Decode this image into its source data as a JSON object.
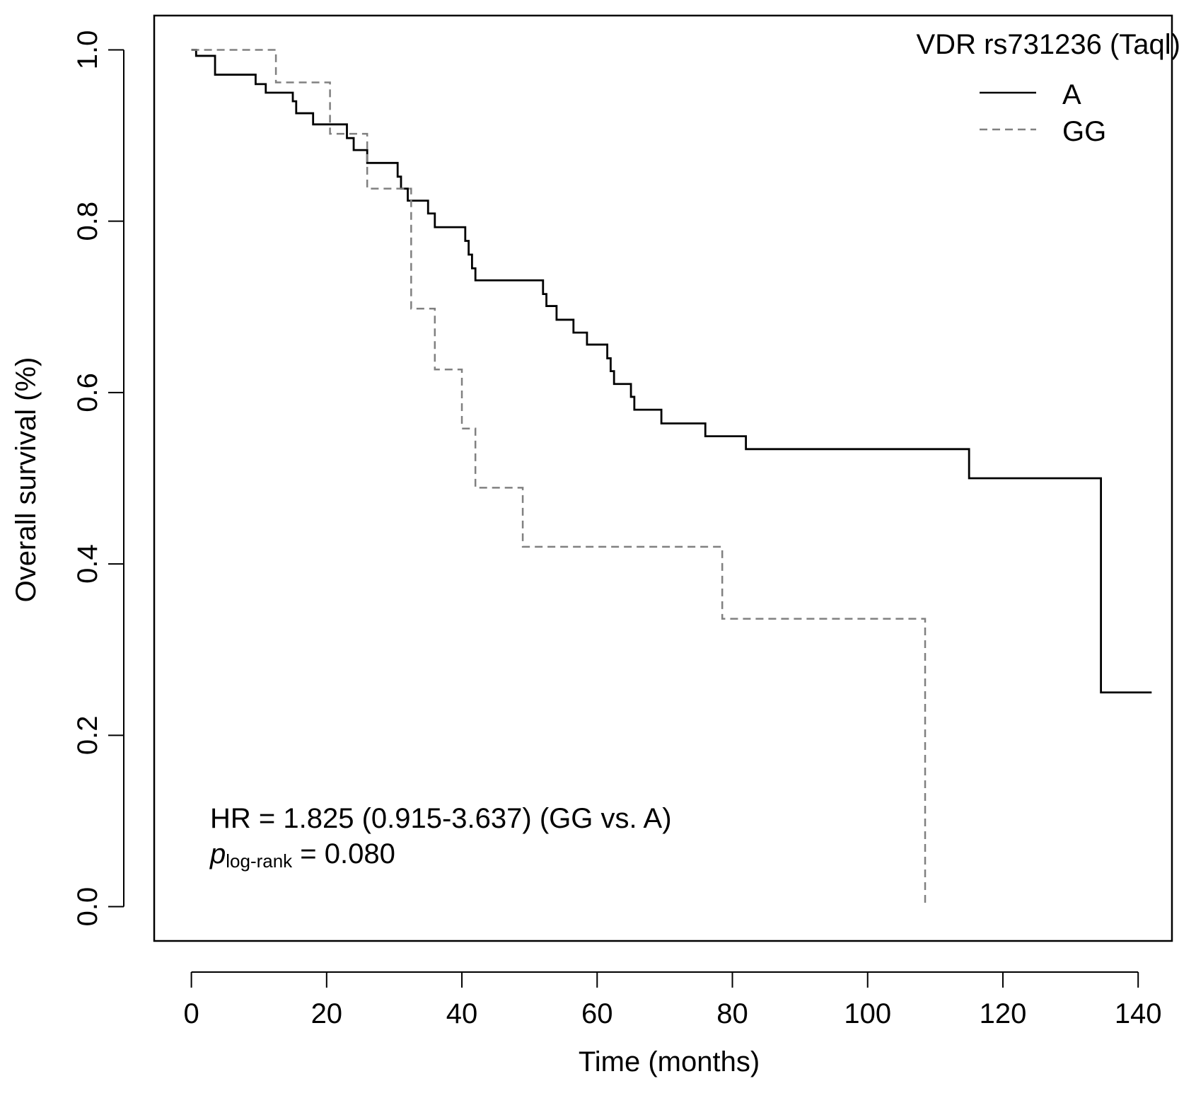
{
  "chart_data": {
    "type": "line",
    "subtype": "kaplan-meier step",
    "xlabel": "Time (months)",
    "ylabel": "Overall survival (%)",
    "xlim": [
      -5.5,
      145
    ],
    "ylim": [
      -0.04,
      1.04
    ],
    "xticks": [
      0,
      20,
      40,
      60,
      80,
      100,
      120,
      140
    ],
    "yticks": [
      0.0,
      0.2,
      0.4,
      0.6,
      0.8,
      1.0
    ],
    "xtick_labels": [
      "0",
      "20",
      "40",
      "60",
      "80",
      "100",
      "120",
      "140"
    ],
    "ytick_labels": [
      "0.0",
      "0.2",
      "0.4",
      "0.6",
      "0.8",
      "1.0"
    ],
    "legend": {
      "title": "VDR rs731236 (Taql)",
      "position": "top-right",
      "entries": [
        "A",
        "GG"
      ]
    },
    "series": [
      {
        "name": "A",
        "style": "solid",
        "color": "#000000",
        "end_time": 142,
        "steps": [
          [
            0,
            1.0
          ],
          [
            0.7,
            0.993
          ],
          [
            3.5,
            0.971
          ],
          [
            9.5,
            0.96
          ],
          [
            11,
            0.95
          ],
          [
            15,
            0.94
          ],
          [
            15.5,
            0.926
          ],
          [
            18,
            0.913
          ],
          [
            23,
            0.897
          ],
          [
            24,
            0.883
          ],
          [
            26,
            0.868
          ],
          [
            30.5,
            0.852
          ],
          [
            31,
            0.838
          ],
          [
            32,
            0.824
          ],
          [
            35,
            0.809
          ],
          [
            36,
            0.793
          ],
          [
            40.5,
            0.777
          ],
          [
            41,
            0.761
          ],
          [
            41.5,
            0.745
          ],
          [
            42,
            0.731
          ],
          [
            52,
            0.715
          ],
          [
            52.5,
            0.701
          ],
          [
            54,
            0.685
          ],
          [
            56.5,
            0.67
          ],
          [
            58.5,
            0.656
          ],
          [
            61.5,
            0.64
          ],
          [
            62,
            0.625
          ],
          [
            62.5,
            0.61
          ],
          [
            65,
            0.595
          ],
          [
            65.5,
            0.58
          ],
          [
            69.5,
            0.564
          ],
          [
            76,
            0.549
          ],
          [
            82,
            0.534
          ],
          [
            115,
            0.5
          ],
          [
            134.5,
            0.25
          ]
        ]
      },
      {
        "name": "GG",
        "style": "dashed",
        "color": "#808080",
        "end_time": 108.5,
        "steps": [
          [
            0,
            1.0
          ],
          [
            12.5,
            0.962
          ],
          [
            20.5,
            0.902
          ],
          [
            26,
            0.838
          ],
          [
            32.5,
            0.698
          ],
          [
            36,
            0.627
          ],
          [
            40,
            0.558
          ],
          [
            42,
            0.489
          ],
          [
            49,
            0.42
          ],
          [
            78.5,
            0.336
          ],
          [
            108.5,
            0.0
          ]
        ]
      }
    ],
    "annotations": {
      "hr_text": "HR = 1.825 (0.915-3.637) (GG vs. A)",
      "p_symbol": "p",
      "p_subscript": "log-rank",
      "p_value_text": " = 0.080"
    }
  }
}
